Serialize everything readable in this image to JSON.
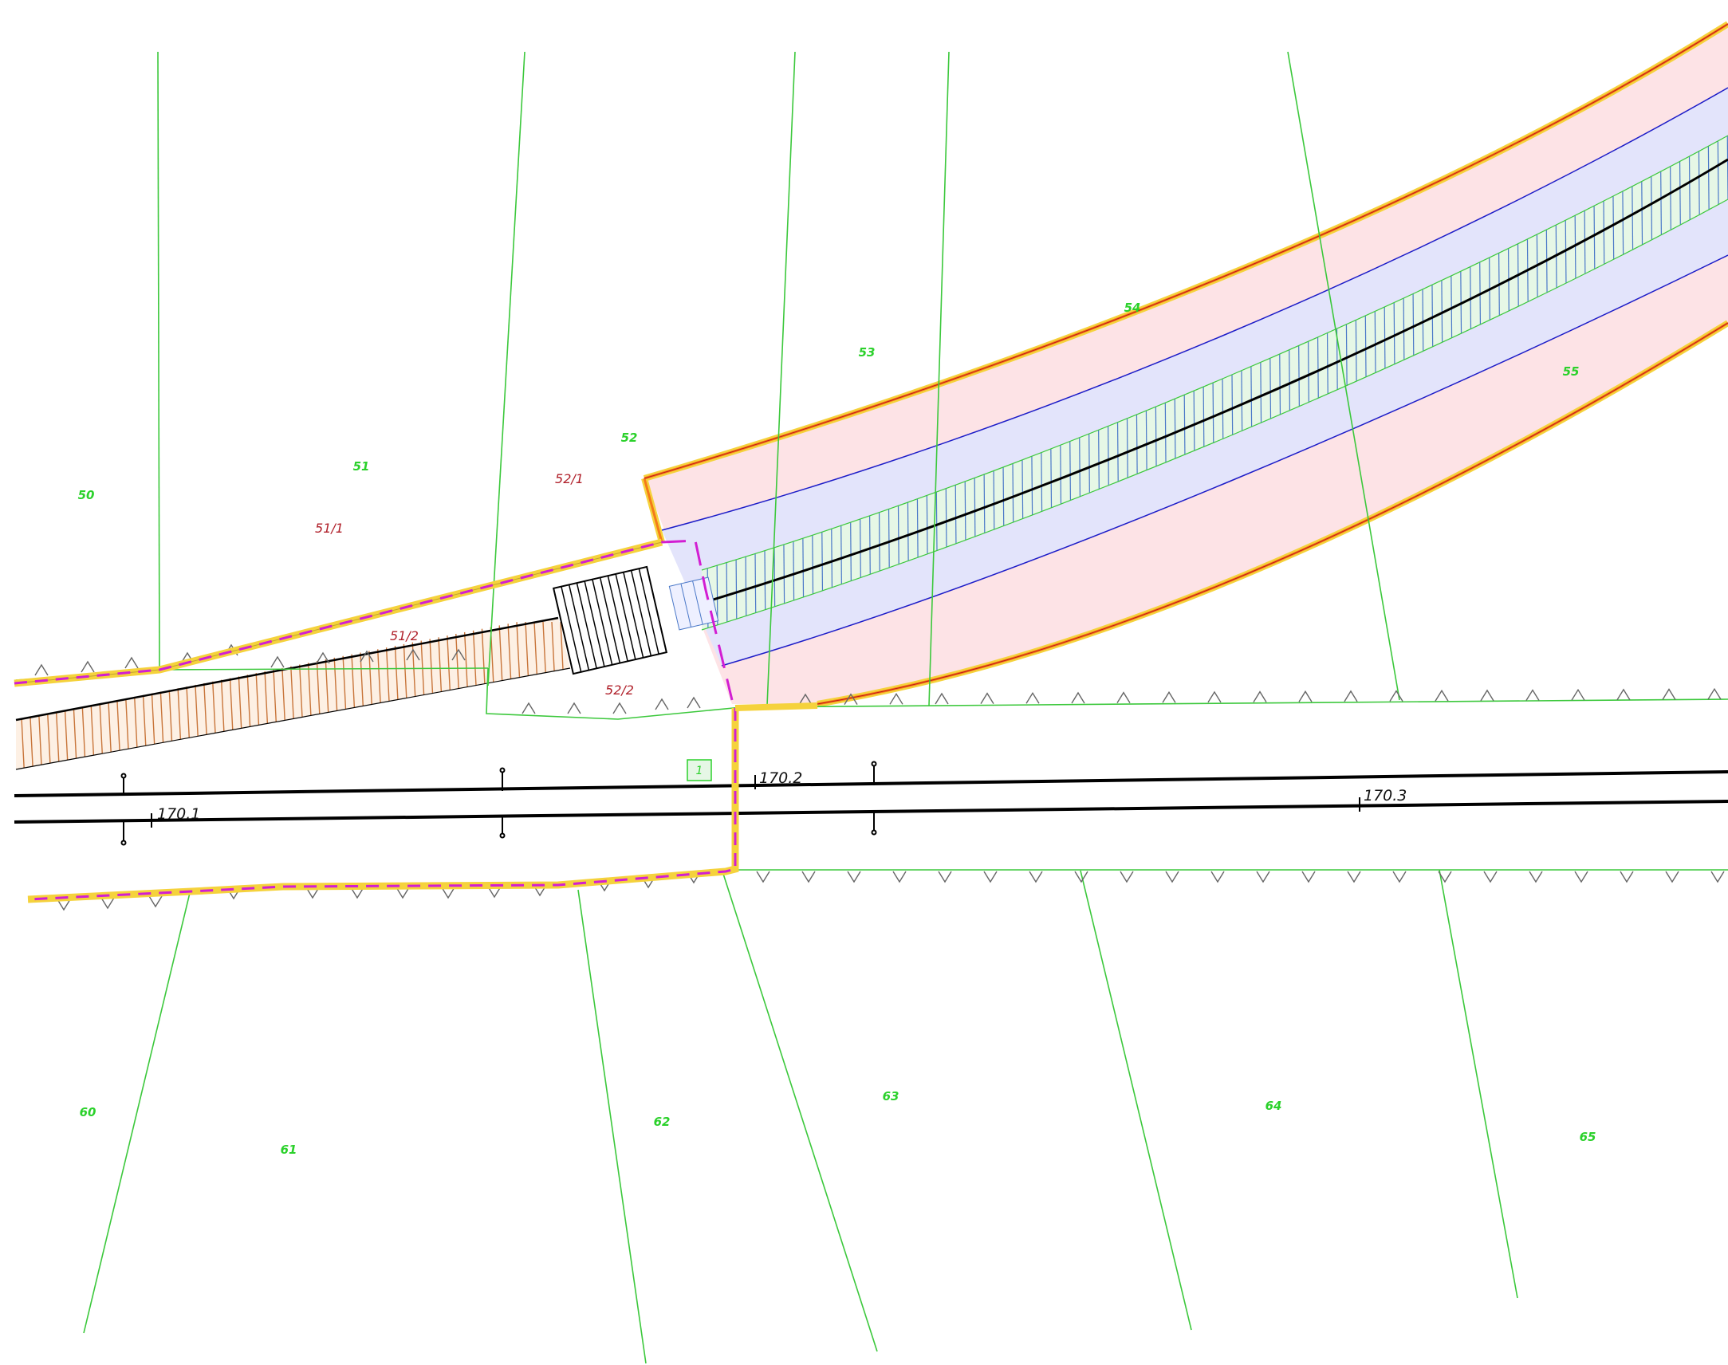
{
  "colors": {
    "parcel_line": "#3cc83c",
    "parcel_label": "#2bd12b",
    "subparcel_label": "#b0202a",
    "road_fill": "#fde3e6",
    "shoulder_fill": "#e3e4fb",
    "median_fill": "#e6f7e6",
    "edge_line": "#1c1cc8",
    "boundary_orange": "#f47a18",
    "boundary_yellow": "#f5d23c",
    "boundary_magenta": "#d21ed2",
    "hatch_brown": "#c8753a",
    "hatch_blue": "#4a78c8",
    "rail": "#000000"
  },
  "parcels": [
    {
      "id": "p50",
      "label": "50"
    },
    {
      "id": "p51",
      "label": "51"
    },
    {
      "id": "p52",
      "label": "52"
    },
    {
      "id": "p53",
      "label": "53"
    },
    {
      "id": "p54",
      "label": "54"
    },
    {
      "id": "p55",
      "label": "55"
    },
    {
      "id": "p60",
      "label": "60"
    },
    {
      "id": "p61",
      "label": "61"
    },
    {
      "id": "p62",
      "label": "62"
    },
    {
      "id": "p63",
      "label": "63"
    },
    {
      "id": "p64",
      "label": "64"
    },
    {
      "id": "p65",
      "label": "65"
    }
  ],
  "subparcels": [
    {
      "id": "s51_1",
      "label": "51/1"
    },
    {
      "id": "s51_2",
      "label": "51/2"
    },
    {
      "id": "s52_1",
      "label": "52/1"
    },
    {
      "id": "s52_2",
      "label": "52/2"
    }
  ],
  "chainage": [
    {
      "id": "k1",
      "label": "170.1"
    },
    {
      "id": "k2",
      "label": "170.2"
    },
    {
      "id": "k3",
      "label": "170.3"
    }
  ],
  "marker_box": {
    "label": "1"
  }
}
